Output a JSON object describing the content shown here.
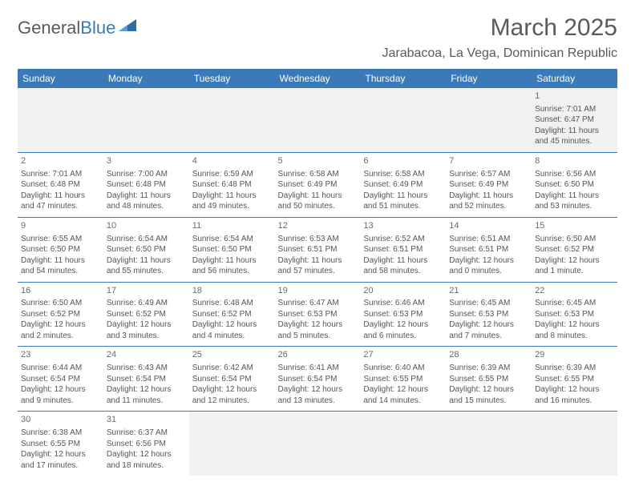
{
  "logo": {
    "text1": "General",
    "text2": "Blue",
    "tri_color": "#2e6da4"
  },
  "header": {
    "month": "March 2025",
    "location": "Jarabacoa, La Vega, Dominican Republic"
  },
  "colors": {
    "header_bg": "#3a7ab8",
    "header_fg": "#ffffff",
    "rule": "#3a7ab8",
    "empty_bg": "#f1f1f1"
  },
  "daynames": [
    "Sunday",
    "Monday",
    "Tuesday",
    "Wednesday",
    "Thursday",
    "Friday",
    "Saturday"
  ],
  "weeks": [
    [
      null,
      null,
      null,
      null,
      null,
      null,
      {
        "n": "1",
        "sr": "7:01 AM",
        "ss": "6:47 PM",
        "dl": "11 hours and 45 minutes."
      }
    ],
    [
      {
        "n": "2",
        "sr": "7:01 AM",
        "ss": "6:48 PM",
        "dl": "11 hours and 47 minutes."
      },
      {
        "n": "3",
        "sr": "7:00 AM",
        "ss": "6:48 PM",
        "dl": "11 hours and 48 minutes."
      },
      {
        "n": "4",
        "sr": "6:59 AM",
        "ss": "6:48 PM",
        "dl": "11 hours and 49 minutes."
      },
      {
        "n": "5",
        "sr": "6:58 AM",
        "ss": "6:49 PM",
        "dl": "11 hours and 50 minutes."
      },
      {
        "n": "6",
        "sr": "6:58 AM",
        "ss": "6:49 PM",
        "dl": "11 hours and 51 minutes."
      },
      {
        "n": "7",
        "sr": "6:57 AM",
        "ss": "6:49 PM",
        "dl": "11 hours and 52 minutes."
      },
      {
        "n": "8",
        "sr": "6:56 AM",
        "ss": "6:50 PM",
        "dl": "11 hours and 53 minutes."
      }
    ],
    [
      {
        "n": "9",
        "sr": "6:55 AM",
        "ss": "6:50 PM",
        "dl": "11 hours and 54 minutes."
      },
      {
        "n": "10",
        "sr": "6:54 AM",
        "ss": "6:50 PM",
        "dl": "11 hours and 55 minutes."
      },
      {
        "n": "11",
        "sr": "6:54 AM",
        "ss": "6:50 PM",
        "dl": "11 hours and 56 minutes."
      },
      {
        "n": "12",
        "sr": "6:53 AM",
        "ss": "6:51 PM",
        "dl": "11 hours and 57 minutes."
      },
      {
        "n": "13",
        "sr": "6:52 AM",
        "ss": "6:51 PM",
        "dl": "11 hours and 58 minutes."
      },
      {
        "n": "14",
        "sr": "6:51 AM",
        "ss": "6:51 PM",
        "dl": "12 hours and 0 minutes."
      },
      {
        "n": "15",
        "sr": "6:50 AM",
        "ss": "6:52 PM",
        "dl": "12 hours and 1 minute."
      }
    ],
    [
      {
        "n": "16",
        "sr": "6:50 AM",
        "ss": "6:52 PM",
        "dl": "12 hours and 2 minutes."
      },
      {
        "n": "17",
        "sr": "6:49 AM",
        "ss": "6:52 PM",
        "dl": "12 hours and 3 minutes."
      },
      {
        "n": "18",
        "sr": "6:48 AM",
        "ss": "6:52 PM",
        "dl": "12 hours and 4 minutes."
      },
      {
        "n": "19",
        "sr": "6:47 AM",
        "ss": "6:53 PM",
        "dl": "12 hours and 5 minutes."
      },
      {
        "n": "20",
        "sr": "6:46 AM",
        "ss": "6:53 PM",
        "dl": "12 hours and 6 minutes."
      },
      {
        "n": "21",
        "sr": "6:45 AM",
        "ss": "6:53 PM",
        "dl": "12 hours and 7 minutes."
      },
      {
        "n": "22",
        "sr": "6:45 AM",
        "ss": "6:53 PM",
        "dl": "12 hours and 8 minutes."
      }
    ],
    [
      {
        "n": "23",
        "sr": "6:44 AM",
        "ss": "6:54 PM",
        "dl": "12 hours and 9 minutes."
      },
      {
        "n": "24",
        "sr": "6:43 AM",
        "ss": "6:54 PM",
        "dl": "12 hours and 11 minutes."
      },
      {
        "n": "25",
        "sr": "6:42 AM",
        "ss": "6:54 PM",
        "dl": "12 hours and 12 minutes."
      },
      {
        "n": "26",
        "sr": "6:41 AM",
        "ss": "6:54 PM",
        "dl": "12 hours and 13 minutes."
      },
      {
        "n": "27",
        "sr": "6:40 AM",
        "ss": "6:55 PM",
        "dl": "12 hours and 14 minutes."
      },
      {
        "n": "28",
        "sr": "6:39 AM",
        "ss": "6:55 PM",
        "dl": "12 hours and 15 minutes."
      },
      {
        "n": "29",
        "sr": "6:39 AM",
        "ss": "6:55 PM",
        "dl": "12 hours and 16 minutes."
      }
    ],
    [
      {
        "n": "30",
        "sr": "6:38 AM",
        "ss": "6:55 PM",
        "dl": "12 hours and 17 minutes."
      },
      {
        "n": "31",
        "sr": "6:37 AM",
        "ss": "6:56 PM",
        "dl": "12 hours and 18 minutes."
      },
      null,
      null,
      null,
      null,
      null
    ]
  ],
  "labels": {
    "sunrise": "Sunrise: ",
    "sunset": "Sunset: ",
    "daylight": "Daylight: "
  }
}
